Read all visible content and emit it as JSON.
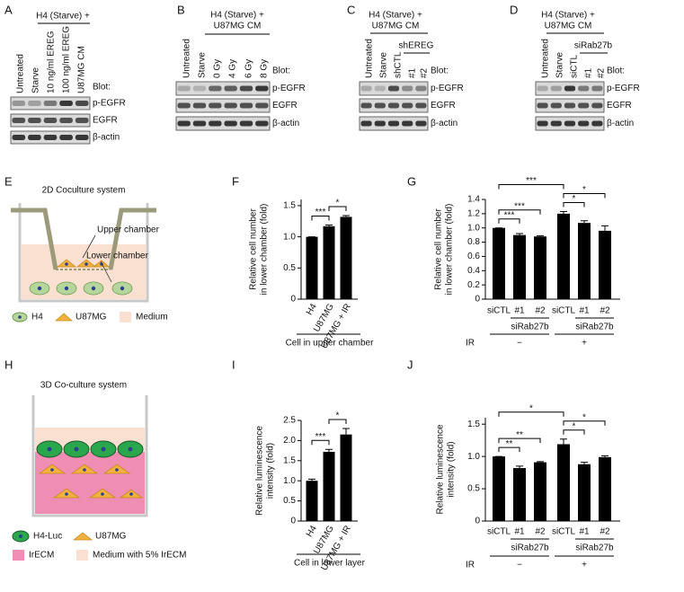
{
  "panel_labels": [
    "A",
    "B",
    "C",
    "D",
    "E",
    "F",
    "G",
    "H",
    "I",
    "J"
  ],
  "blots": [
    {
      "header": [
        "H4 (Starve) +"
      ],
      "lanes": [
        "Untreated",
        "Starve",
        "10 ng/ml EREG",
        "100 ng/ml EREG",
        "U87MG CM"
      ],
      "blot_label": "Blot:",
      "rows": [
        "p-EGFR",
        "EGFR",
        "β-actin"
      ]
    },
    {
      "header": [
        "H4 (Starve) +",
        "U87MG CM"
      ],
      "lanes": [
        "Untreated",
        "Starve",
        "0 Gy",
        "4 Gy",
        "6 Gy",
        "8 Gy"
      ],
      "blot_label": "Blot:",
      "rows": [
        "p-EGFR",
        "EGFR",
        "β-actin"
      ]
    },
    {
      "header": [
        "H4 (Starve) +",
        "U87MG CM"
      ],
      "subgroup": {
        "label": "shEREG",
        "span": [
          3,
          4
        ]
      },
      "lanes": [
        "Untreated",
        "Starve",
        "shCTL",
        "#1",
        "#2"
      ],
      "blot_label": "Blot:",
      "rows": [
        "p-EGFR",
        "EGFR",
        "β-actin"
      ]
    },
    {
      "header": [
        "H4 (Starve) +",
        "U87MG CM"
      ],
      "subgroup": {
        "label": "siRab27b",
        "span": [
          3,
          4
        ]
      },
      "lanes": [
        "Untreated",
        "Starve",
        "siCTL",
        "#1",
        "#2"
      ],
      "blot_label": "Blot:",
      "rows": [
        "p-EGFR",
        "EGFR",
        "β-actin"
      ]
    }
  ],
  "diagrams": [
    {
      "title": "2D Coculture system",
      "callouts": [
        "Upper chamber",
        "Lower chamber"
      ],
      "legend": [
        "H4",
        "U87MG",
        "Medium"
      ]
    },
    {
      "title": "3D Co-culture system",
      "legend": [
        "H4-Luc",
        "U87MG",
        "IrECM",
        "Medium with 5% IrECM"
      ]
    }
  ],
  "chart_data": [
    {
      "type": "bar",
      "ylabel": [
        "Relative cell number",
        "in lower chamber (fold)"
      ],
      "categories": [
        "H4",
        "U87MG",
        "U87MG + IR"
      ],
      "values": [
        1.0,
        1.17,
        1.32
      ],
      "errors": [
        0,
        0.02,
        0.02
      ],
      "color": "#000000",
      "ylim": [
        0,
        1.6
      ],
      "yticks": [
        0,
        0.5,
        {
          "value": 1,
          "label": "1.0"
        },
        1.5
      ],
      "xlabel": "Cell in upper chamber",
      "significance": [
        {
          "pair": [
            0,
            1
          ],
          "label": "***"
        },
        {
          "pair": [
            1,
            2
          ],
          "label": "*"
        }
      ]
    },
    {
      "type": "bar",
      "ylabel": [
        "Relative cell number",
        "in lower chamber (fold)"
      ],
      "categories": [
        "siCTL",
        "#1",
        "#2",
        "siCTL",
        "#1",
        "#2"
      ],
      "values": [
        1.0,
        0.9,
        0.88,
        1.2,
        1.07,
        0.96
      ],
      "errors": [
        0,
        0.02,
        0.01,
        0.03,
        0.03,
        0.07
      ],
      "color": "#000000",
      "ylim": [
        0,
        1.4
      ],
      "yticks": [
        0,
        0.2,
        0.4,
        0.6,
        0.8,
        {
          "value": 1,
          "label": "1.0"
        },
        1.2,
        1.4
      ],
      "groups": [
        {
          "label": "siRab27b",
          "span": [
            1,
            2
          ]
        },
        {
          "label": "siRab27b",
          "span": [
            4,
            5
          ]
        }
      ],
      "condition": {
        "label": "IR",
        "levels": [
          {
            "label": "−",
            "span": [
              0,
              2
            ]
          },
          {
            "label": "+",
            "span": [
              3,
              5
            ]
          }
        ]
      },
      "significance": [
        {
          "pair": [
            0,
            1
          ],
          "label": "***"
        },
        {
          "pair": [
            0,
            2
          ],
          "label": "***"
        },
        {
          "pair": [
            0,
            3
          ],
          "label": "***"
        },
        {
          "pair": [
            3,
            4
          ],
          "label": "*"
        },
        {
          "pair": [
            3,
            5
          ],
          "label": "*"
        }
      ]
    },
    {
      "type": "bar",
      "ylabel": [
        "Relative luminescence",
        "intensity (fold)"
      ],
      "categories": [
        "H4",
        "U87MG",
        "U87MG + IR"
      ],
      "values": [
        1.0,
        1.72,
        2.15
      ],
      "errors": [
        0.04,
        0.06,
        0.15
      ],
      "color": "#000000",
      "ylim": [
        0,
        2.5
      ],
      "yticks": [
        0,
        0.5,
        {
          "value": 1,
          "label": "1.0"
        },
        1.5,
        {
          "value": 2,
          "label": "2.0"
        },
        2.5
      ],
      "xlabel": "Cell in lower layer",
      "significance": [
        {
          "pair": [
            0,
            1
          ],
          "label": "***"
        },
        {
          "pair": [
            1,
            2
          ],
          "label": "*"
        }
      ]
    },
    {
      "type": "bar",
      "ylabel": [
        "Relative luminescence",
        "intensity (fold)"
      ],
      "categories": [
        "siCTL",
        "#1",
        "#2",
        "siCTL",
        "#1",
        "#2"
      ],
      "values": [
        1.0,
        0.82,
        0.91,
        1.19,
        0.88,
        0.99
      ],
      "errors": [
        0,
        0.03,
        0.01,
        0.08,
        0.03,
        0.02
      ],
      "color": "#000000",
      "ylim": [
        0,
        1.6
      ],
      "yticks": [
        0,
        0.5,
        {
          "value": 1,
          "label": "1.0"
        },
        1.5
      ],
      "groups": [
        {
          "label": "siRab27b",
          "span": [
            1,
            2
          ]
        },
        {
          "label": "siRab27b",
          "span": [
            4,
            5
          ]
        }
      ],
      "condition": {
        "label": "IR",
        "levels": [
          {
            "label": "−",
            "span": [
              0,
              2
            ]
          },
          {
            "label": "+",
            "span": [
              3,
              5
            ]
          }
        ]
      },
      "significance": [
        {
          "pair": [
            0,
            1
          ],
          "label": "**"
        },
        {
          "pair": [
            0,
            2
          ],
          "label": "**"
        },
        {
          "pair": [
            0,
            3
          ],
          "label": "*"
        },
        {
          "pair": [
            3,
            4
          ],
          "label": "*"
        },
        {
          "pair": [
            3,
            5
          ],
          "label": "*"
        }
      ]
    }
  ]
}
